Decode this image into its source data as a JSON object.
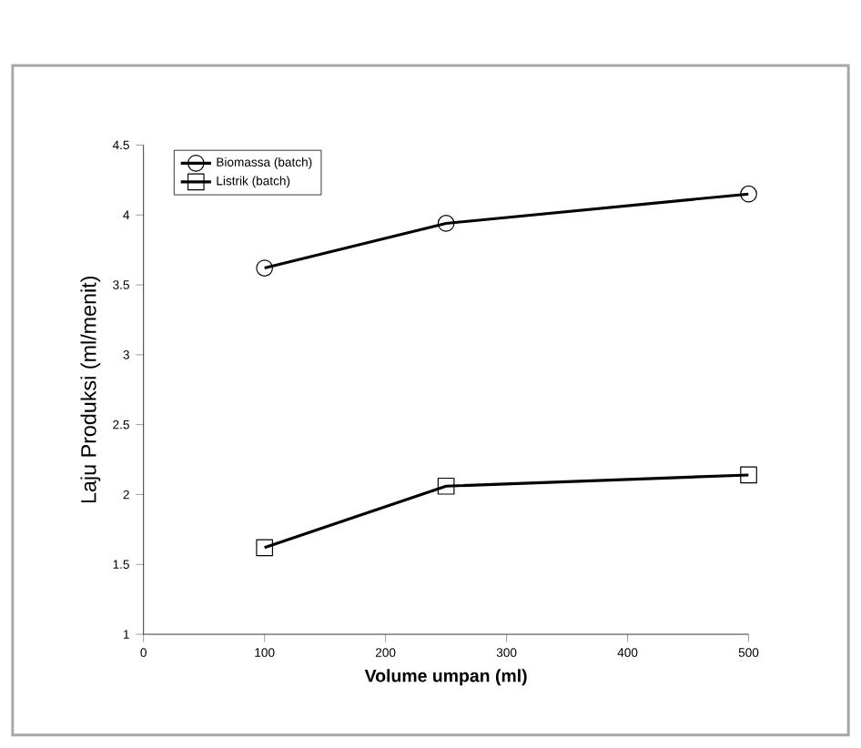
{
  "chart_data": {
    "type": "line",
    "xlabel": "Volume umpan (ml)",
    "ylabel": "Laju Produksi (ml/menit)",
    "xlim": [
      0,
      500
    ],
    "xticks": [
      0,
      100,
      200,
      300,
      400,
      500
    ],
    "ylim": [
      1,
      4.5
    ],
    "yticks": [
      1,
      1.5,
      2,
      2.5,
      3,
      3.5,
      4,
      4.5
    ],
    "legend": "top left",
    "grid": false,
    "series": [
      {
        "name": "Biomassa (batch)",
        "color": "#000000",
        "marker": "circle",
        "x": [
          100,
          250,
          500
        ],
        "values": [
          3.62,
          3.94,
          4.15
        ]
      },
      {
        "name": "Listrik (batch)",
        "color": "#000000",
        "marker": "square",
        "x": [
          100,
          250,
          500
        ],
        "values": [
          1.62,
          2.06,
          2.14
        ]
      }
    ]
  }
}
